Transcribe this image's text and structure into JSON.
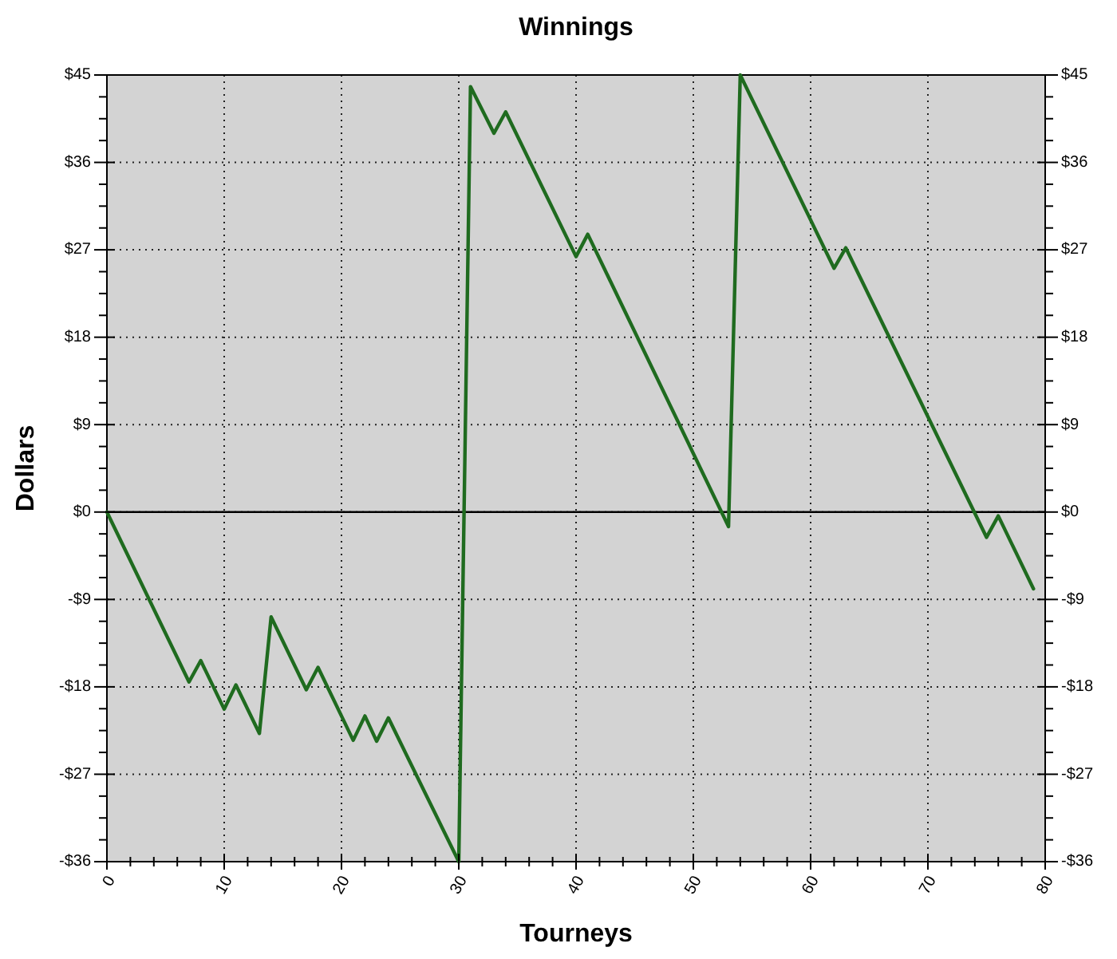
{
  "chart_data": {
    "type": "line",
    "title": "Winnings",
    "xlabel": "Tourneys",
    "ylabel": "Dollars",
    "series": [
      {
        "color": "#1f6b1f",
        "x": [
          0,
          7,
          8,
          10,
          11,
          13,
          14,
          17,
          18,
          21,
          22,
          23,
          24,
          30,
          31,
          33,
          34,
          40,
          41,
          53,
          54,
          62,
          63,
          75,
          76,
          79
        ],
        "values": [
          0,
          -17.5,
          -15.3,
          -20.3,
          -17.8,
          -22.8,
          -10.8,
          -18.3,
          -16,
          -23.5,
          -21,
          -23.6,
          -21.2,
          -36,
          43.8,
          39,
          41.2,
          26.3,
          28.6,
          -1.5,
          45,
          25.1,
          27.2,
          -2.6,
          -0.4,
          -7.9
        ]
      }
    ],
    "xlim": [
      0,
      80
    ],
    "xticks": [
      0,
      {
        "value": 2,
        "label": null
      },
      {
        "value": 4,
        "label": null
      },
      {
        "value": 6,
        "label": null
      },
      {
        "value": 8,
        "label": null
      },
      10,
      {
        "value": 12,
        "label": null
      },
      {
        "value": 14,
        "label": null
      },
      {
        "value": 16,
        "label": null
      },
      {
        "value": 18,
        "label": null
      },
      20,
      {
        "value": 22,
        "label": null
      },
      {
        "value": 24,
        "label": null
      },
      {
        "value": 26,
        "label": null
      },
      {
        "value": 28,
        "label": null
      },
      30,
      {
        "value": 32,
        "label": null
      },
      {
        "value": 34,
        "label": null
      },
      {
        "value": 36,
        "label": null
      },
      {
        "value": 38,
        "label": null
      },
      40,
      {
        "value": 42,
        "label": null
      },
      {
        "value": 44,
        "label": null
      },
      {
        "value": 46,
        "label": null
      },
      {
        "value": 48,
        "label": null
      },
      50,
      {
        "value": 52,
        "label": null
      },
      {
        "value": 54,
        "label": null
      },
      {
        "value": 56,
        "label": null
      },
      {
        "value": 58,
        "label": null
      },
      60,
      {
        "value": 62,
        "label": null
      },
      {
        "value": 64,
        "label": null
      },
      {
        "value": 66,
        "label": null
      },
      {
        "value": 68,
        "label": null
      },
      70,
      {
        "value": 72,
        "label": null
      },
      {
        "value": 74,
        "label": null
      },
      {
        "value": 76,
        "label": null
      },
      {
        "value": 78,
        "label": null
      },
      80
    ],
    "ylim": [
      -36,
      45
    ],
    "yticks": [
      {
        "value": -36,
        "label": "-$36"
      },
      {
        "value": -33.75,
        "label": null
      },
      {
        "value": -31.5,
        "label": null
      },
      {
        "value": -29.25,
        "label": null
      },
      {
        "value": -27,
        "label": "-$27"
      },
      {
        "value": -24.75,
        "label": null
      },
      {
        "value": -22.5,
        "label": null
      },
      {
        "value": -20.25,
        "label": null
      },
      {
        "value": -18,
        "label": "-$18"
      },
      {
        "value": -15.75,
        "label": null
      },
      {
        "value": -13.5,
        "label": null
      },
      {
        "value": -11.25,
        "label": null
      },
      {
        "value": -9,
        "label": "-$9"
      },
      {
        "value": -6.75,
        "label": null
      },
      {
        "value": -4.5,
        "label": null
      },
      {
        "value": -2.25,
        "label": null
      },
      {
        "value": 0,
        "label": "$0"
      },
      {
        "value": 2.25,
        "label": null
      },
      {
        "value": 4.5,
        "label": null
      },
      {
        "value": 6.75,
        "label": null
      },
      {
        "value": 9,
        "label": "$9"
      },
      {
        "value": 11.25,
        "label": null
      },
      {
        "value": 13.5,
        "label": null
      },
      {
        "value": 15.75,
        "label": null
      },
      {
        "value": 18,
        "label": "$18"
      },
      {
        "value": 20.25,
        "label": null
      },
      {
        "value": 22.5,
        "label": null
      },
      {
        "value": 24.75,
        "label": null
      },
      {
        "value": 27,
        "label": "$27"
      },
      {
        "value": 29.25,
        "label": null
      },
      {
        "value": 31.5,
        "label": null
      },
      {
        "value": 33.75,
        "label": null
      },
      {
        "value": 36,
        "label": "$36"
      },
      {
        "value": 38.25,
        "label": null
      },
      {
        "value": 40.5,
        "label": null
      },
      {
        "value": 42.75,
        "label": null
      },
      {
        "value": 45,
        "label": "$45"
      }
    ],
    "y2lim": [
      -36,
      45
    ],
    "y2ticks": [
      {
        "value": -36,
        "label": "-$36"
      },
      {
        "value": -33.75,
        "label": null
      },
      {
        "value": -31.5,
        "label": null
      },
      {
        "value": -29.25,
        "label": null
      },
      {
        "value": -27,
        "label": "-$27"
      },
      {
        "value": -24.75,
        "label": null
      },
      {
        "value": -22.5,
        "label": null
      },
      {
        "value": -20.25,
        "label": null
      },
      {
        "value": -18,
        "label": "-$18"
      },
      {
        "value": -15.75,
        "label": null
      },
      {
        "value": -13.5,
        "label": null
      },
      {
        "value": -11.25,
        "label": null
      },
      {
        "value": -9,
        "label": "-$9"
      },
      {
        "value": -6.75,
        "label": null
      },
      {
        "value": -4.5,
        "label": null
      },
      {
        "value": -2.25,
        "label": null
      },
      {
        "value": 0,
        "label": "$0"
      },
      {
        "value": 2.25,
        "label": null
      },
      {
        "value": 4.5,
        "label": null
      },
      {
        "value": 6.75,
        "label": null
      },
      {
        "value": 9,
        "label": "$9"
      },
      {
        "value": 11.25,
        "label": null
      },
      {
        "value": 13.5,
        "label": null
      },
      {
        "value": 15.75,
        "label": null
      },
      {
        "value": 18,
        "label": "$18"
      },
      {
        "value": 20.25,
        "label": null
      },
      {
        "value": 22.5,
        "label": null
      },
      {
        "value": 24.75,
        "label": null
      },
      {
        "value": 27,
        "label": "$27"
      },
      {
        "value": 29.25,
        "label": null
      },
      {
        "value": 31.5,
        "label": null
      },
      {
        "value": 33.75,
        "label": null
      },
      {
        "value": 36,
        "label": "$36"
      },
      {
        "value": 38.25,
        "label": null
      },
      {
        "value": 40.5,
        "label": null
      },
      {
        "value": 42.75,
        "label": null
      },
      {
        "value": 45,
        "label": "$45"
      }
    ],
    "ref_lines": [
      {
        "axis": "y",
        "value": 0,
        "color": "#000000"
      }
    ],
    "grid": true,
    "marker": "none",
    "line_style": "solid"
  }
}
